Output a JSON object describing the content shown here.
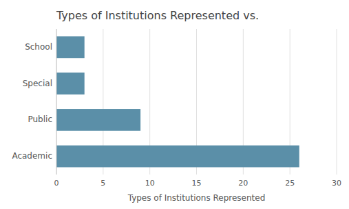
{
  "chart_data": {
    "type": "bar",
    "orientation": "horizontal",
    "title": "Types of Institutions Represented vs.",
    "xlabel": "Types of Institutions Represented",
    "categories": [
      "Academic",
      "Public",
      "Special",
      "School"
    ],
    "values": [
      26,
      9,
      3,
      3
    ],
    "color": "#5b8fa8",
    "xlim": [
      0,
      30
    ],
    "xticks": [
      0,
      5,
      10,
      15,
      20,
      25,
      30
    ],
    "grid": true
  }
}
